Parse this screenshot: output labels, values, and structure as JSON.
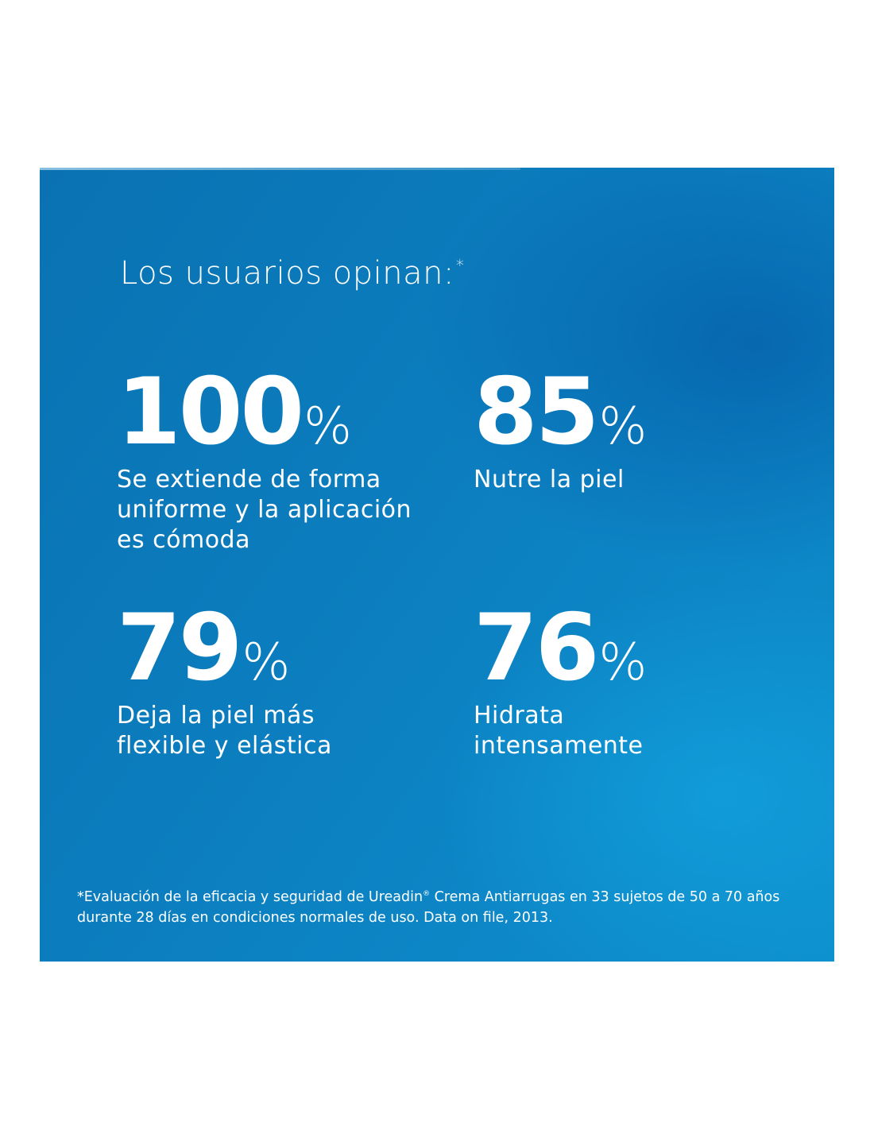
{
  "heading": {
    "text": "Los usuarios opinan:",
    "marker": "*"
  },
  "stats": [
    {
      "number": "100",
      "percent": "%",
      "label_lines": [
        "Se extiende de forma",
        "uniforme y la aplicación",
        "es cómoda"
      ]
    },
    {
      "number": "85",
      "percent": "%",
      "label_lines": [
        "Nutre la piel"
      ]
    },
    {
      "number": "79",
      "percent": "%",
      "label_lines": [
        "Deja la piel más",
        "flexible y elástica"
      ]
    },
    {
      "number": "76",
      "percent": "%",
      "label_lines": [
        "Hidrata",
        "intensamente"
      ]
    }
  ],
  "footnote": {
    "before_mark": "*Evaluación de la eficacia y seguridad de Ureadin",
    "mark": "®",
    "after_mark": " Crema Antiarrugas en 33 sujetos de 50 a 70 años durante 28 días en condiciones normales de uso. Data on file, 2013."
  },
  "colors": {
    "panel_blue": "#0b7cbd",
    "text": "#ffffff",
    "page_background": "#ffffff"
  }
}
